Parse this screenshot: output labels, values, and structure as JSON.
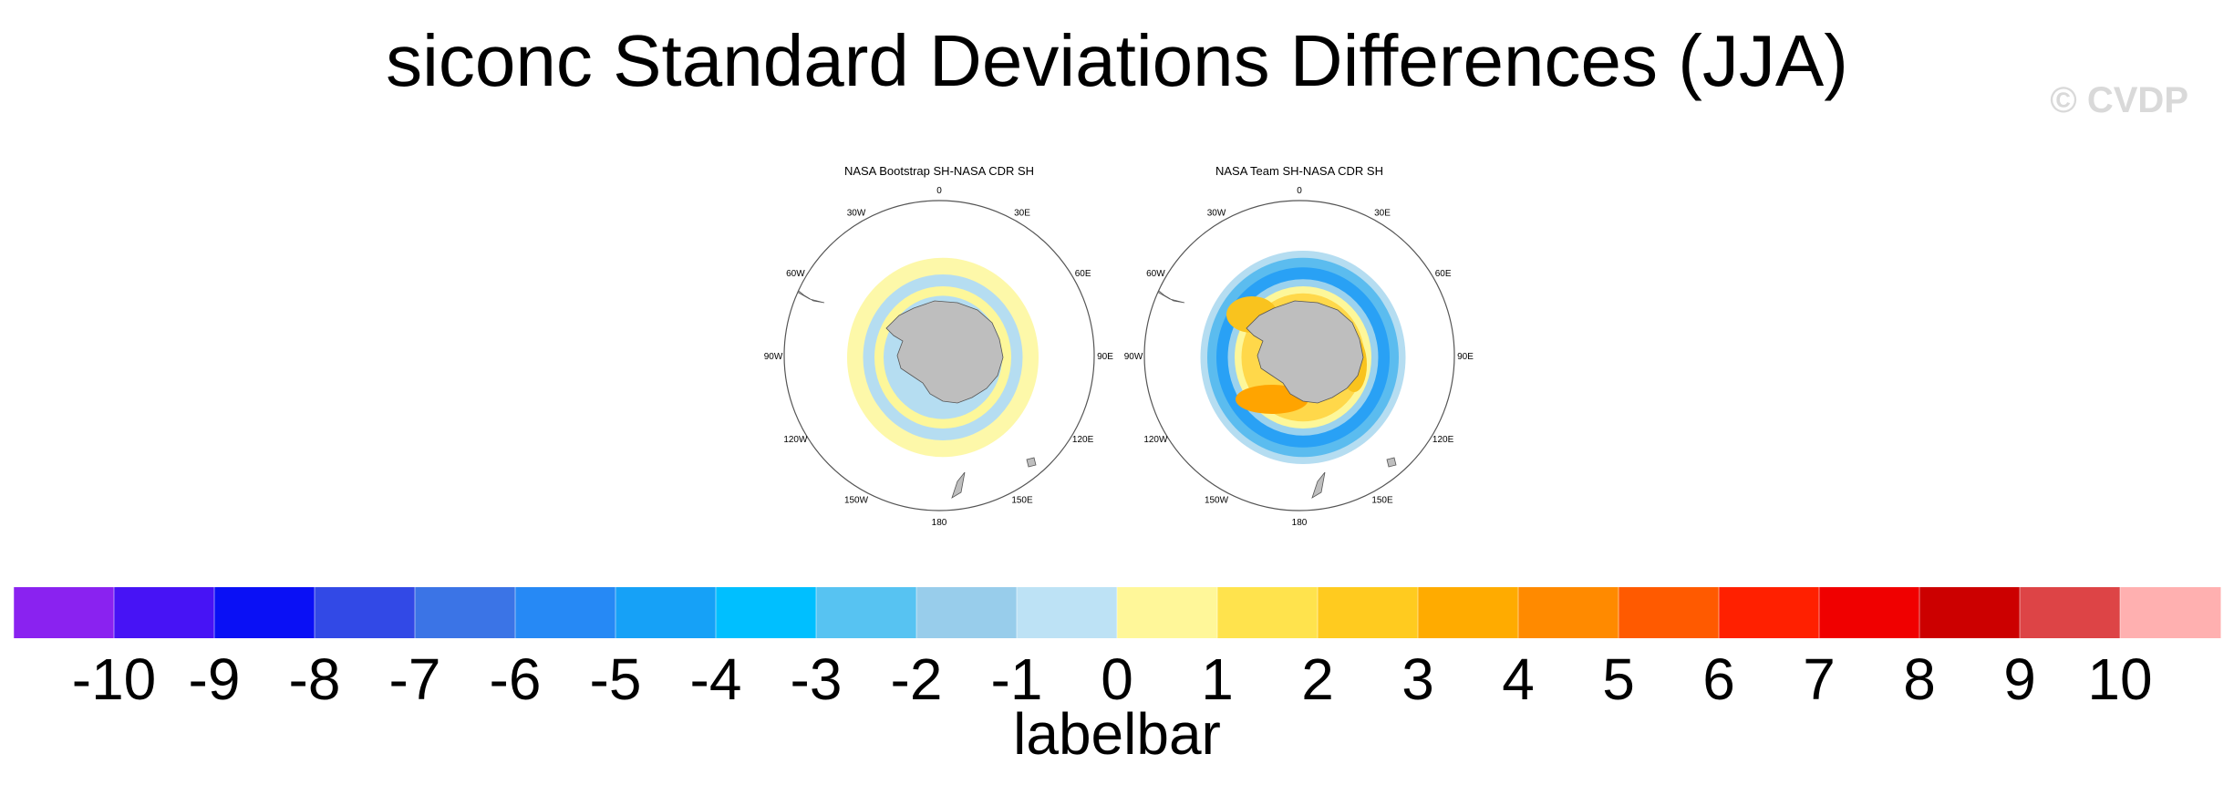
{
  "title": "siconc Standard Deviations Differences (JJA)",
  "watermark": "© CVDP",
  "panels": [
    {
      "title": "NASA Bootstrap SH-NASA CDR SH",
      "ring_colors": [
        "#fdf79a",
        "#b5ddf1",
        "#fdf79a",
        "#b5ddf1"
      ],
      "ring_radii": [
        84,
        70,
        60,
        52
      ],
      "accent_patches": []
    },
    {
      "title": "NASA Team SH-NASA CDR SH",
      "ring_colors": [
        "#b5ddf1",
        "#5bbcef",
        "#29a1f5",
        "#9bd2ee",
        "#fdf79a",
        "#ffd84a"
      ],
      "ring_radii": [
        90,
        84,
        76,
        66,
        60,
        54
      ],
      "accent_patches": [
        "#f9c31e",
        "#ffa400",
        "#f9c31e"
      ]
    }
  ],
  "lon_labels": [
    "0",
    "30E",
    "60E",
    "90E",
    "120E",
    "150E",
    "180",
    "150W",
    "120W",
    "90W",
    "60W",
    "30W"
  ],
  "labelbar": {
    "title": "labelbar",
    "labels": [
      "-10",
      "-9",
      "-8",
      "-7",
      "-6",
      "-5",
      "-4",
      "-3",
      "-2",
      "-1",
      "0",
      "1",
      "2",
      "3",
      "4",
      "5",
      "6",
      "7",
      "8",
      "9",
      "10"
    ],
    "colors": [
      "#8a22f0",
      "#4713f5",
      "#0a10f5",
      "#3249e6",
      "#3b74e6",
      "#2689f5",
      "#16a1f7",
      "#00bfff",
      "#57c3f2",
      "#98cdeb",
      "#bde2f5",
      "#fff799",
      "#ffe34d",
      "#ffcb1f",
      "#ffab00",
      "#ff8a00",
      "#ff5a00",
      "#ff2000",
      "#f00000",
      "#cc0000",
      "#dd4446",
      "#ffb0b0"
    ]
  },
  "map_colors": {
    "land": "#bebebe",
    "coast": "#555555",
    "circle": "#555555"
  }
}
